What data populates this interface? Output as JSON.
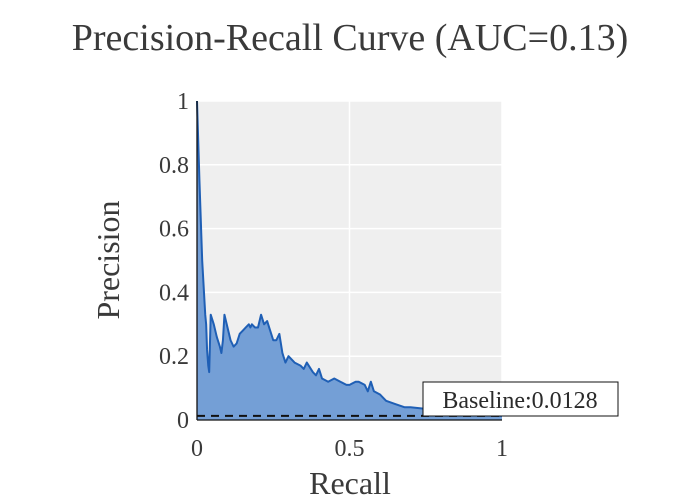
{
  "chart_data": {
    "type": "area",
    "title": "Precision-Recall Curve (AUC=0.13)",
    "xlabel": "Recall",
    "ylabel": "Precision",
    "xlim": [
      0,
      1
    ],
    "ylim": [
      0,
      1
    ],
    "x_ticks": [
      0,
      0.5,
      1
    ],
    "x_tick_labels": [
      "0",
      "0.5",
      "1"
    ],
    "y_ticks": [
      0,
      0.2,
      0.4,
      0.6,
      0.8,
      1
    ],
    "y_tick_labels": [
      "0",
      "0.2",
      "0.4",
      "0.6",
      "0.8",
      "1"
    ],
    "grid": true,
    "series": [
      {
        "name": "Precision-Recall",
        "line_color": "#1f5fb5",
        "fill_color": "#6d9ad4",
        "x": [
          0,
          0.008,
          0.017,
          0.027,
          0.03,
          0.033,
          0.037,
          0.04,
          0.045,
          0.055,
          0.065,
          0.075,
          0.08,
          0.085,
          0.09,
          0.1,
          0.11,
          0.12,
          0.13,
          0.14,
          0.15,
          0.16,
          0.17,
          0.175,
          0.18,
          0.19,
          0.2,
          0.21,
          0.22,
          0.23,
          0.24,
          0.25,
          0.26,
          0.27,
          0.28,
          0.29,
          0.3,
          0.32,
          0.34,
          0.35,
          0.36,
          0.38,
          0.39,
          0.4,
          0.41,
          0.43,
          0.45,
          0.47,
          0.49,
          0.5,
          0.52,
          0.53,
          0.55,
          0.56,
          0.57,
          0.58,
          0.6,
          0.62,
          0.65,
          0.68,
          0.7,
          0.75,
          0.8,
          0.85,
          0.9,
          0.95,
          1.0
        ],
        "y": [
          1.0,
          0.75,
          0.5,
          0.33,
          0.3,
          0.22,
          0.17,
          0.15,
          0.33,
          0.3,
          0.26,
          0.23,
          0.21,
          0.25,
          0.33,
          0.29,
          0.25,
          0.23,
          0.24,
          0.27,
          0.28,
          0.29,
          0.3,
          0.29,
          0.3,
          0.29,
          0.29,
          0.33,
          0.3,
          0.31,
          0.28,
          0.25,
          0.25,
          0.27,
          0.21,
          0.18,
          0.2,
          0.18,
          0.17,
          0.16,
          0.18,
          0.15,
          0.14,
          0.16,
          0.13,
          0.12,
          0.13,
          0.12,
          0.11,
          0.11,
          0.12,
          0.12,
          0.11,
          0.09,
          0.12,
          0.09,
          0.08,
          0.06,
          0.05,
          0.04,
          0.04,
          0.035,
          0.03,
          0.025,
          0.02,
          0.015,
          0.0128
        ]
      }
    ],
    "baseline": {
      "value": 0.0128,
      "style": "dashed",
      "color": "#111111",
      "label": "Baseline:0.0128"
    }
  }
}
